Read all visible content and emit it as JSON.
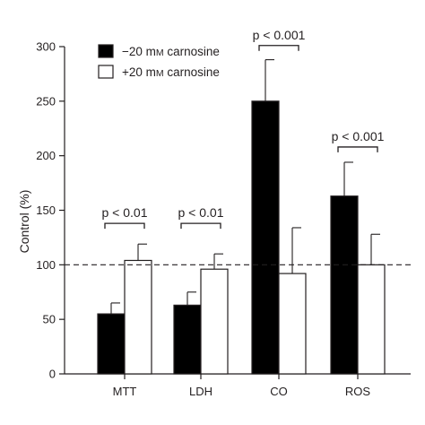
{
  "chart_data": {
    "type": "bar",
    "ylabel": "Control (%)",
    "xlabel": "",
    "ylim": [
      0,
      300
    ],
    "yticks": [
      0,
      50,
      100,
      150,
      200,
      250,
      300
    ],
    "categories": [
      "MTT",
      "LDH",
      "CO",
      "ROS"
    ],
    "reference_line": 100,
    "legend_position": "top-left",
    "series": [
      {
        "name": "−20 mM carnosine",
        "name_prefix": "−20 m",
        "name_smallcaps": "M",
        "name_suffix": " carnosine",
        "color": "#000000",
        "values": [
          55,
          63,
          250,
          163
        ],
        "errors": [
          10,
          12,
          38,
          31
        ]
      },
      {
        "name": "+20 mM carnosine",
        "name_prefix": "+20 m",
        "name_smallcaps": "M",
        "name_suffix": " carnosine",
        "color": "#ffffff",
        "values": [
          104,
          96,
          92,
          100
        ],
        "errors": [
          15,
          14,
          42,
          28
        ]
      }
    ],
    "annotations": [
      {
        "category": "MTT",
        "text": "p < 0.01",
        "y": 138
      },
      {
        "category": "LDH",
        "text": "p < 0.01",
        "y": 138
      },
      {
        "category": "CO",
        "text": "p < 0.001",
        "y": 301
      },
      {
        "category": "ROS",
        "text": "p < 0.001",
        "y": 208
      }
    ]
  }
}
